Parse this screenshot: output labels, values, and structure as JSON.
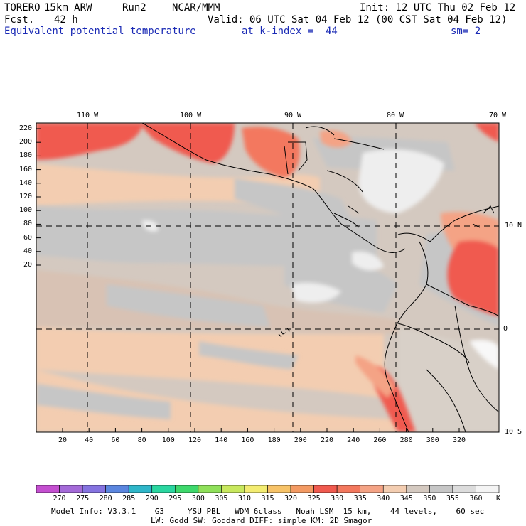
{
  "header": {
    "model": "TORERO",
    "resolution": "15km ARW",
    "run": "Run2",
    "org": "NCAR/MMM",
    "init": "Init: 12 UTC Thu 02 Feb 12",
    "fcst_label": "Fcst.",
    "fcst_value": "42 h",
    "valid": "Valid: 06 UTC Sat 04 Feb 12 (00 CST Sat 04 Feb 12)",
    "field": "Equivalent potential temperature",
    "level": "at k-index =  44",
    "smoothing": "sm= 2"
  },
  "map": {
    "top_lon_labels": [
      "110 W",
      "100 W",
      "90 W",
      "80 W",
      "70 W"
    ],
    "right_lat_labels": [
      "10 N",
      "0",
      "10 S"
    ],
    "y_ticks": [
      "220",
      "200",
      "180",
      "160",
      "140",
      "120",
      "100",
      "80",
      "60",
      "40",
      "20"
    ],
    "x_ticks": [
      "20",
      "40",
      "60",
      "80",
      "100",
      "120",
      "140",
      "160",
      "180",
      "200",
      "220",
      "240",
      "260",
      "280",
      "300",
      "320"
    ]
  },
  "colorbar": {
    "labels": [
      "270",
      "275",
      "280",
      "285",
      "290",
      "295",
      "300",
      "305",
      "310",
      "315",
      "320",
      "325",
      "330",
      "335",
      "340",
      "345",
      "350",
      "355",
      "360"
    ],
    "unit": "K",
    "colors": [
      "#c44fd0",
      "#a46ad8",
      "#8573e0",
      "#5b86df",
      "#2fb6c9",
      "#2ad6a0",
      "#3ed86c",
      "#8fe05a",
      "#c8e85e",
      "#f3ec71",
      "#f7c368",
      "#f39a63",
      "#f05a4f",
      "#f3785e",
      "#f4a385",
      "#f3cdb1",
      "#d4c9c0",
      "#c6c6c6",
      "#dcdcdc",
      "#f4f4f4"
    ]
  },
  "footer": {
    "line1": "Model Info: V3.3.1    G3     YSU PBL   WDM 6class   Noah LSM  15 km,    44 levels,    60 sec",
    "line2": "LW: Godd SW: Goddard DIFF: simple KM: 2D Smagor"
  }
}
